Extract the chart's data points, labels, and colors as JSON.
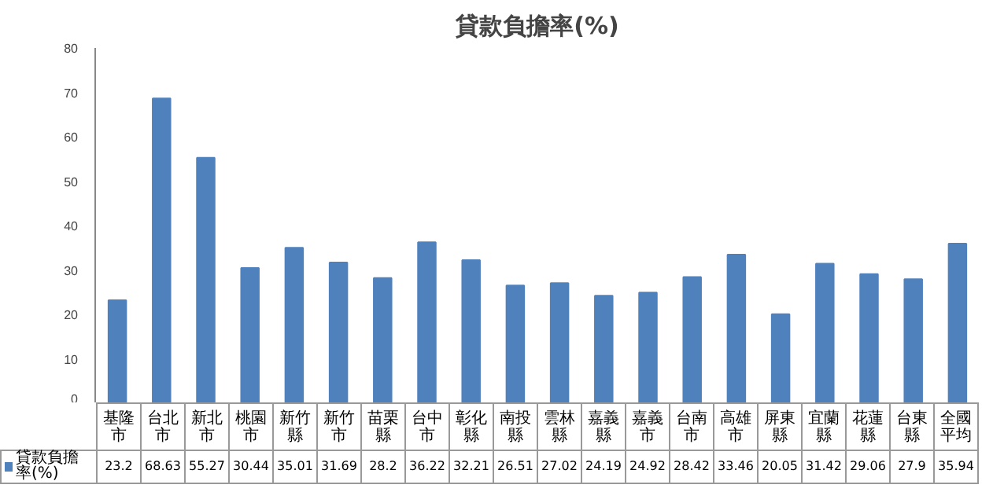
{
  "chart_data": {
    "type": "bar",
    "title": "貸款負擔率(%)",
    "categories": [
      "基隆市",
      "台北市",
      "新北市",
      "桃園市",
      "新竹縣",
      "新竹市",
      "苗栗縣",
      "台中市",
      "彰化縣",
      "南投縣",
      "雲林縣",
      "嘉義縣",
      "嘉義市",
      "台南市",
      "高雄市",
      "屏東縣",
      "宜蘭縣",
      "花蓮縣",
      "台東縣",
      "全國平均"
    ],
    "series": [
      {
        "name": "貸款負擔率(%)",
        "color": "#4f81bd",
        "values": [
          23.2,
          68.63,
          55.27,
          30.44,
          35.01,
          31.69,
          28.2,
          36.22,
          32.21,
          26.51,
          27.02,
          24.19,
          24.92,
          28.42,
          33.46,
          20.05,
          31.42,
          29.06,
          27.9,
          35.94
        ]
      }
    ],
    "ylim": [
      0,
      80
    ],
    "yticks": [
      0,
      10,
      20,
      30,
      40,
      50,
      60,
      70,
      80
    ],
    "grid": false,
    "legend": "bottom",
    "data_labels": true
  }
}
